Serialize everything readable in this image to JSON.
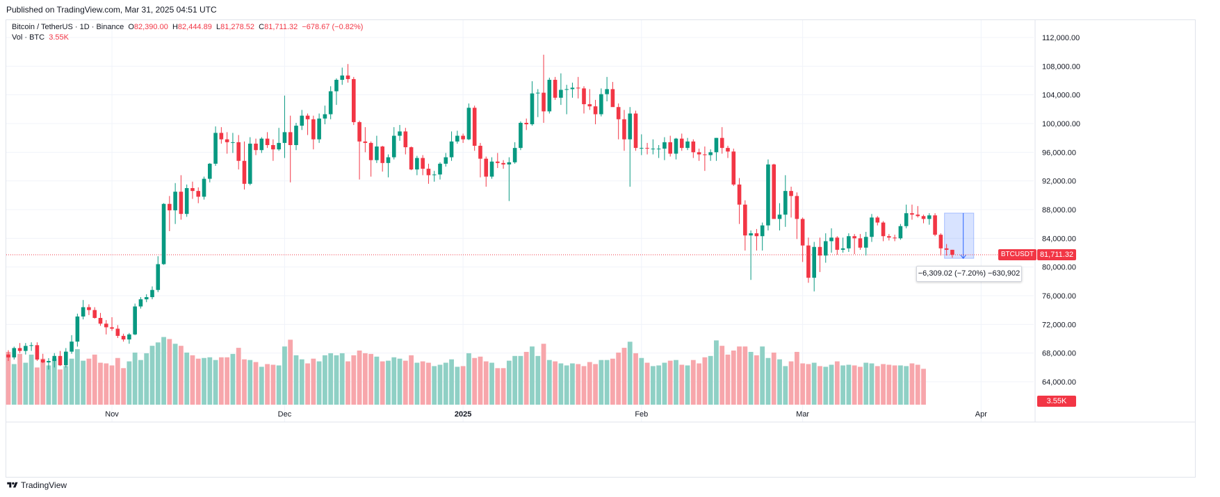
{
  "header": {
    "published": "Published on TradingView.com, Mar 31, 2025 04:51 UTC"
  },
  "legend": {
    "symbol": "Bitcoin / TetherUS · 1D · Binance",
    "o_label": "O",
    "o_value": "82,390.00",
    "h_label": "H",
    "h_value": "82,444.89",
    "l_label": "L",
    "l_value": "81,278.52",
    "c_label": "C",
    "c_value": "81,711.32",
    "change": "−678.67 (−0.82%)",
    "vol_label": "Vol · BTC",
    "vol_value": "3.55K"
  },
  "price_tag": {
    "symbol": "BTCUSDT",
    "value": "81,711.32"
  },
  "volume_tag": "3.55K",
  "measure_tooltip": "−6,309.02 (−7.20%) −630,902",
  "footer": {
    "brand": "TradingView"
  },
  "colors": {
    "up": "#089981",
    "down": "#f23645",
    "up_vol": "#8fd0c5",
    "down_vol": "#f7a6ab",
    "grid": "#f0f3fa",
    "measure": "#2962ff"
  },
  "chart_data": {
    "type": "candlestick",
    "title": "Bitcoin / TetherUS · 1D · Binance",
    "y_axis": {
      "ticks": [
        112000,
        108000,
        104000,
        100000,
        96000,
        92000,
        88000,
        84000,
        80000,
        76000,
        72000,
        68000,
        64000
      ],
      "tick_labels": [
        "112,000.00",
        "108,000.00",
        "104,000.00",
        "100,000.00",
        "96,000.00",
        "92,000.00",
        "88,000.00",
        "84,000.00",
        "80,000.00",
        "76,000.00",
        "72,000.00",
        "68,000.00",
        "64,000.00"
      ],
      "range": [
        61000,
        114000
      ]
    },
    "x_axis": {
      "labels": [
        {
          "label": "Nov",
          "index": 18
        },
        {
          "label": "Dec",
          "index": 48
        },
        {
          "label": "2025",
          "index": 79
        },
        {
          "label": "Feb",
          "index": 110
        },
        {
          "label": "Mar",
          "index": 138
        },
        {
          "label": "Apr",
          "index": 169
        }
      ]
    },
    "last_price": 81711.32,
    "measure": {
      "from": 87520,
      "to": 81211,
      "start_index": 163,
      "end_index": 167
    },
    "candles": [
      [
        67800,
        68400,
        66900,
        67400
      ],
      [
        67400,
        68900,
        67100,
        68700
      ],
      [
        68700,
        69400,
        68000,
        68300
      ],
      [
        68300,
        69400,
        67800,
        69000
      ],
      [
        69000,
        69500,
        68300,
        69100
      ],
      [
        69100,
        69500,
        66900,
        67100
      ],
      [
        67100,
        67900,
        66600,
        66700
      ],
      [
        66700,
        67300,
        65700,
        66900
      ],
      [
        66900,
        68000,
        66000,
        67600
      ],
      [
        67600,
        68300,
        66200,
        66300
      ],
      [
        66300,
        68700,
        66000,
        68200
      ],
      [
        68200,
        70500,
        67900,
        69600
      ],
      [
        69600,
        73500,
        68900,
        73100
      ],
      [
        73100,
        75400,
        72700,
        74400
      ],
      [
        74400,
        74800,
        73300,
        74000
      ],
      [
        74000,
        74400,
        72800,
        72900
      ],
      [
        72900,
        73600,
        71800,
        72100
      ],
      [
        72100,
        72600,
        70600,
        71600
      ],
      [
        71600,
        73000,
        71100,
        71400
      ],
      [
        71400,
        71900,
        70100,
        70400
      ],
      [
        70400,
        70700,
        69600,
        69900
      ],
      [
        69900,
        70800,
        69300,
        70600
      ],
      [
        70600,
        74900,
        70500,
        74500
      ],
      [
        74500,
        75800,
        74200,
        75500
      ],
      [
        75500,
        76200,
        75100,
        75800
      ],
      [
        75800,
        77300,
        75500,
        76800
      ],
      [
        76800,
        81500,
        76500,
        80400
      ],
      [
        80400,
        88900,
        80300,
        88800
      ],
      [
        88800,
        89900,
        85000,
        87900
      ],
      [
        87900,
        91700,
        86000,
        90500
      ],
      [
        90500,
        92800,
        86600,
        87400
      ],
      [
        87400,
        91500,
        87000,
        91000
      ],
      [
        91000,
        91900,
        89500,
        90600
      ],
      [
        90600,
        91100,
        88900,
        89800
      ],
      [
        89800,
        92600,
        89400,
        92300
      ],
      [
        92300,
        94500,
        91800,
        94400
      ],
      [
        94400,
        99600,
        94100,
        98700
      ],
      [
        98700,
        99500,
        97200,
        97800
      ],
      [
        97800,
        98800,
        95800,
        97400
      ],
      [
        97400,
        98700,
        95900,
        97400
      ],
      [
        97400,
        98400,
        93600,
        94800
      ],
      [
        94800,
        97500,
        90800,
        91600
      ],
      [
        91600,
        98100,
        91400,
        97200
      ],
      [
        97200,
        97900,
        95600,
        96300
      ],
      [
        96300,
        98100,
        95900,
        97900
      ],
      [
        97900,
        98800,
        96600,
        97000
      ],
      [
        97000,
        97800,
        94800,
        96400
      ],
      [
        96400,
        99400,
        96200,
        97300
      ],
      [
        97300,
        103900,
        95200,
        98800
      ],
      [
        98800,
        101100,
        91800,
        97000
      ],
      [
        97000,
        100100,
        96300,
        99700
      ],
      [
        99700,
        101900,
        99100,
        101100
      ],
      [
        101100,
        101400,
        98400,
        100600
      ],
      [
        100600,
        101100,
        96400,
        97800
      ],
      [
        97800,
        101400,
        97300,
        100700
      ],
      [
        100700,
        102500,
        99900,
        101300
      ],
      [
        101300,
        105200,
        100600,
        104500
      ],
      [
        104500,
        106300,
        102600,
        106100
      ],
      [
        106100,
        107800,
        105400,
        106700
      ],
      [
        106700,
        108300,
        105700,
        106200
      ],
      [
        106200,
        106500,
        99800,
        100200
      ],
      [
        100200,
        100400,
        92200,
        97500
      ],
      [
        97500,
        99500,
        96000,
        97300
      ],
      [
        97300,
        97500,
        92600,
        94900
      ],
      [
        94900,
        98300,
        94500,
        96800
      ],
      [
        96800,
        96900,
        93300,
        94500
      ],
      [
        94500,
        95700,
        92500,
        95300
      ],
      [
        95300,
        99500,
        95000,
        98300
      ],
      [
        98300,
        99800,
        97600,
        98900
      ],
      [
        98900,
        99400,
        95700,
        96700
      ],
      [
        96700,
        96800,
        93500,
        93600
      ],
      [
        93600,
        95500,
        92800,
        95200
      ],
      [
        95200,
        95600,
        92800,
        93700
      ],
      [
        93700,
        94400,
        91600,
        92800
      ],
      [
        92800,
        93400,
        91900,
        92900
      ],
      [
        92900,
        94600,
        92200,
        94400
      ],
      [
        94400,
        95900,
        94000,
        95300
      ],
      [
        95300,
        98900,
        94800,
        97500
      ],
      [
        97500,
        99000,
        97200,
        98300
      ],
      [
        98300,
        98600,
        97300,
        97800
      ],
      [
        97800,
        102800,
        97700,
        102200
      ],
      [
        102200,
        102500,
        96200,
        96900
      ],
      [
        96900,
        97300,
        92500,
        95100
      ],
      [
        95100,
        95400,
        91200,
        92600
      ],
      [
        92600,
        95300,
        92300,
        94700
      ],
      [
        94700,
        95900,
        93800,
        94500
      ],
      [
        94500,
        94900,
        93700,
        94300
      ],
      [
        94300,
        95300,
        89200,
        94600
      ],
      [
        94600,
        97400,
        94400,
        96600
      ],
      [
        96600,
        100300,
        96300,
        100100
      ],
      [
        100100,
        100700,
        99100,
        99900
      ],
      [
        99900,
        105900,
        99700,
        104200
      ],
      [
        104200,
        104800,
        100900,
        104300
      ],
      [
        104300,
        109600,
        100100,
        101700
      ],
      [
        101700,
        106400,
        101400,
        106100
      ],
      [
        106100,
        106500,
        103300,
        103600
      ],
      [
        103600,
        107000,
        102600,
        104700
      ],
      [
        104700,
        105400,
        101300,
        104800
      ],
      [
        104800,
        105700,
        103600,
        105000
      ],
      [
        105000,
        106500,
        103500,
        104900
      ],
      [
        104900,
        105200,
        101400,
        102700
      ],
      [
        102700,
        104800,
        101900,
        102400
      ],
      [
        102400,
        103300,
        99900,
        101300
      ],
      [
        101300,
        104900,
        101000,
        104100
      ],
      [
        104100,
        106500,
        103100,
        104800
      ],
      [
        104800,
        105800,
        102800,
        102300
      ],
      [
        102300,
        102800,
        97800,
        100600
      ],
      [
        100600,
        101900,
        96200,
        97800
      ],
      [
        97800,
        102300,
        91200,
        101400
      ],
      [
        101400,
        101800,
        96200,
        96600
      ],
      [
        96600,
        98500,
        95600,
        96600
      ],
      [
        96600,
        97300,
        95700,
        96500
      ],
      [
        96500,
        97800,
        95700,
        96500
      ],
      [
        96500,
        97000,
        95200,
        96500
      ],
      [
        96500,
        98100,
        94900,
        97400
      ],
      [
        97400,
        98300,
        95400,
        95800
      ],
      [
        95800,
        98000,
        95000,
        97900
      ],
      [
        97900,
        98600,
        96200,
        96600
      ],
      [
        96600,
        98000,
        96300,
        97500
      ],
      [
        97500,
        97800,
        95200,
        96000
      ],
      [
        96000,
        96500,
        94800,
        95700
      ],
      [
        95700,
        96800,
        93400,
        95600
      ],
      [
        95600,
        96400,
        94800,
        96000
      ],
      [
        96000,
        98000,
        94800,
        98000
      ],
      [
        98000,
        99500,
        95800,
        96600
      ],
      [
        96600,
        96900,
        95200,
        96100
      ],
      [
        96100,
        96500,
        91300,
        91500
      ],
      [
        91500,
        92400,
        86000,
        88700
      ],
      [
        88700,
        89300,
        82300,
        84400
      ],
      [
        84400,
        85100,
        78200,
        84700
      ],
      [
        84700,
        85300,
        82300,
        84300
      ],
      [
        84300,
        86200,
        82300,
        85800
      ],
      [
        85800,
        95000,
        85100,
        94300
      ],
      [
        94300,
        94400,
        86800,
        86700
      ],
      [
        86700,
        88900,
        85100,
        87300
      ],
      [
        87300,
        92800,
        85600,
        90600
      ],
      [
        90600,
        91200,
        86900,
        89900
      ],
      [
        89900,
        90400,
        83900,
        86700
      ],
      [
        86700,
        86900,
        80700,
        83000
      ],
      [
        83000,
        84100,
        77800,
        78500
      ],
      [
        78500,
        83500,
        76600,
        82800
      ],
      [
        82800,
        84100,
        79300,
        81600
      ],
      [
        81600,
        84700,
        80600,
        83600
      ],
      [
        83600,
        85400,
        82000,
        84100
      ],
      [
        84100,
        84300,
        81700,
        82400
      ],
      [
        82400,
        84100,
        82000,
        82600
      ],
      [
        82600,
        84700,
        82100,
        84300
      ],
      [
        84300,
        84600,
        81800,
        84000
      ],
      [
        84000,
        84600,
        82400,
        82700
      ],
      [
        82700,
        84900,
        81600,
        84200
      ],
      [
        84200,
        87400,
        83500,
        86900
      ],
      [
        86900,
        87100,
        85800,
        86200
      ],
      [
        86200,
        86400,
        83600,
        84300
      ],
      [
        84300,
        84600,
        83700,
        84100
      ],
      [
        84100,
        84500,
        83600,
        84000
      ],
      [
        84000,
        86000,
        83800,
        85700
      ],
      [
        85700,
        88700,
        85400,
        87500
      ],
      [
        87500,
        88700,
        86600,
        87300
      ],
      [
        87300,
        88500,
        86900,
        87100
      ],
      [
        87100,
        87300,
        86100,
        86700
      ],
      [
        86700,
        87500,
        85900,
        87200
      ],
      [
        87200,
        87500,
        84300,
        84500
      ],
      [
        84500,
        84700,
        81600,
        82600
      ],
      [
        82600,
        83200,
        81600,
        82400
      ],
      [
        82400,
        82400,
        81300,
        81700
      ]
    ],
    "volumes": [
      [
        0.78
      ],
      [
        0.6
      ],
      [
        0.75
      ],
      [
        0.62
      ],
      [
        0.74
      ],
      [
        0.55
      ],
      [
        0.68
      ],
      [
        0.58
      ],
      [
        0.68
      ],
      [
        0.52
      ],
      [
        0.57
      ],
      [
        0.68
      ],
      [
        0.82
      ],
      [
        0.65
      ],
      [
        0.68
      ],
      [
        0.74
      ],
      [
        0.62
      ],
      [
        0.61
      ],
      [
        0.58
      ],
      [
        0.69
      ],
      [
        0.54
      ],
      [
        0.64
      ],
      [
        0.77
      ],
      [
        0.66
      ],
      [
        0.76
      ],
      [
        0.87
      ],
      [
        0.92
      ],
      [
        1.0
      ],
      [
        0.97
      ],
      [
        0.9
      ],
      [
        0.87
      ],
      [
        0.77
      ],
      [
        0.73
      ],
      [
        0.68
      ],
      [
        0.69
      ],
      [
        0.7
      ],
      [
        0.66
      ],
      [
        0.7
      ],
      [
        0.7
      ],
      [
        0.75
      ],
      [
        0.84
      ],
      [
        0.67
      ],
      [
        0.66
      ],
      [
        0.63
      ],
      [
        0.56
      ],
      [
        0.6
      ],
      [
        0.59
      ],
      [
        0.58
      ],
      [
        0.86
      ],
      [
        0.96
      ],
      [
        0.73
      ],
      [
        0.67
      ],
      [
        0.61
      ],
      [
        0.68
      ],
      [
        0.64
      ],
      [
        0.73
      ],
      [
        0.76
      ],
      [
        0.73
      ],
      [
        0.76
      ],
      [
        0.64
      ],
      [
        0.73
      ],
      [
        0.8
      ],
      [
        0.76
      ],
      [
        0.75
      ],
      [
        0.71
      ],
      [
        0.64
      ],
      [
        0.65
      ],
      [
        0.7
      ],
      [
        0.68
      ],
      [
        0.65
      ],
      [
        0.73
      ],
      [
        0.62
      ],
      [
        0.64
      ],
      [
        0.62
      ],
      [
        0.57
      ],
      [
        0.59
      ],
      [
        0.62
      ],
      [
        0.67
      ],
      [
        0.56
      ],
      [
        0.57
      ],
      [
        0.76
      ],
      [
        0.69
      ],
      [
        0.71
      ],
      [
        0.64
      ],
      [
        0.62
      ],
      [
        0.54
      ],
      [
        0.54
      ],
      [
        0.65
      ],
      [
        0.72
      ],
      [
        0.72
      ],
      [
        0.78
      ],
      [
        0.86
      ],
      [
        0.72
      ],
      [
        0.9
      ],
      [
        0.66
      ],
      [
        0.64
      ],
      [
        0.61
      ],
      [
        0.58
      ],
      [
        0.61
      ],
      [
        0.6
      ],
      [
        0.57
      ],
      [
        0.63
      ],
      [
        0.6
      ],
      [
        0.66
      ],
      [
        0.66
      ],
      [
        0.68
      ],
      [
        0.77
      ],
      [
        0.84
      ],
      [
        0.93
      ],
      [
        0.76
      ],
      [
        0.69
      ],
      [
        0.62
      ],
      [
        0.57
      ],
      [
        0.58
      ],
      [
        0.62
      ],
      [
        0.65
      ],
      [
        0.66
      ],
      [
        0.59
      ],
      [
        0.58
      ],
      [
        0.66
      ],
      [
        0.61
      ],
      [
        0.7
      ],
      [
        0.72
      ],
      [
        0.95
      ],
      [
        0.87
      ],
      [
        0.74
      ],
      [
        0.8
      ],
      [
        0.86
      ],
      [
        0.86
      ],
      [
        0.78
      ],
      [
        0.73
      ],
      [
        0.86
      ],
      [
        0.69
      ],
      [
        0.77
      ],
      [
        0.67
      ],
      [
        0.57
      ],
      [
        0.64
      ],
      [
        0.78
      ],
      [
        0.61
      ],
      [
        0.6
      ],
      [
        0.62
      ],
      [
        0.57
      ],
      [
        0.56
      ],
      [
        0.59
      ],
      [
        0.64
      ],
      [
        0.58
      ],
      [
        0.59
      ],
      [
        0.58
      ],
      [
        0.56
      ],
      [
        0.62
      ],
      [
        0.61
      ],
      [
        0.57
      ],
      [
        0.6
      ],
      [
        0.59
      ],
      [
        0.58
      ],
      [
        0.58
      ],
      [
        0.57
      ],
      [
        0.61
      ],
      [
        0.59
      ],
      [
        0.53
      ]
    ]
  }
}
